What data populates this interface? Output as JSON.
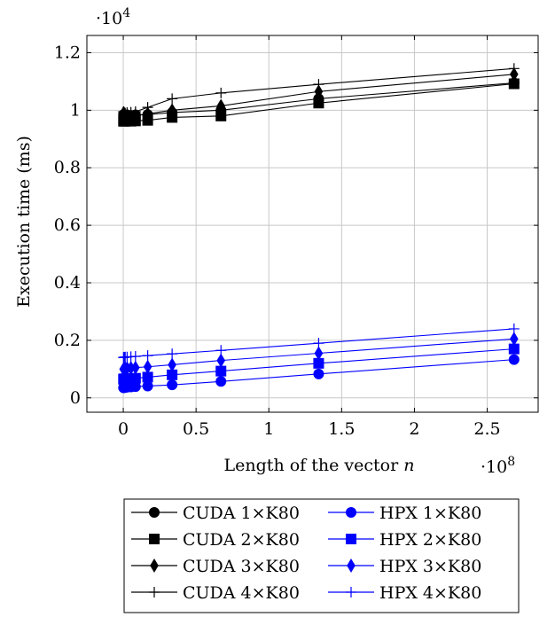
{
  "chart_data": {
    "type": "line",
    "xlabel_text": "Length of the vector ",
    "xlabel_var": "n",
    "ylabel": "Execution time (ms)",
    "y_multiplier": {
      "base": "·10",
      "exp": "4"
    },
    "x_multiplier": {
      "base": "·10",
      "exp": "8"
    },
    "xlim": [
      -0.25,
      2.85
    ],
    "ylim": [
      -0.05,
      1.26
    ],
    "x_ticks": [
      0,
      0.5,
      1,
      1.5,
      2,
      2.5
    ],
    "x_tick_labels": [
      "0",
      "0.5",
      "1",
      "1.5",
      "2",
      "2.5"
    ],
    "y_ticks": [
      0,
      0.2,
      0.4,
      0.6,
      0.8,
      1,
      1.2
    ],
    "y_tick_labels": [
      "0",
      "0.2",
      "0.4",
      "0.6",
      "0.8",
      "1",
      "1.2"
    ],
    "grid": true,
    "legend_position": "bottom",
    "x": [
      0.0016,
      0.0033,
      0.0066,
      0.0131,
      0.0262,
      0.0524,
      0.0839,
      0.1678,
      0.3355,
      0.6711,
      1.3422,
      2.6844
    ],
    "series": [
      {
        "name": "CUDA 1×K80",
        "color": "#000000",
        "marker": "circle",
        "values": [
          0.985,
          0.982,
          0.985,
          0.983,
          0.984,
          0.982,
          0.984,
          0.985,
          0.992,
          1.0,
          1.04,
          1.095
        ]
      },
      {
        "name": "HPX 1×K80",
        "color": "#0000ff",
        "marker": "circle",
        "values": [
          0.035,
          0.035,
          0.036,
          0.036,
          0.037,
          0.038,
          0.039,
          0.041,
          0.045,
          0.057,
          0.083,
          0.133
        ]
      },
      {
        "name": "CUDA 2×K80",
        "color": "#000000",
        "marker": "square",
        "values": [
          0.962,
          0.962,
          0.963,
          0.962,
          0.963,
          0.962,
          0.963,
          0.965,
          0.975,
          0.98,
          1.025,
          1.092
        ]
      },
      {
        "name": "HPX 2×K80",
        "color": "#0000ff",
        "marker": "square",
        "values": [
          0.065,
          0.065,
          0.066,
          0.066,
          0.066,
          0.067,
          0.068,
          0.072,
          0.08,
          0.093,
          0.12,
          0.17
        ]
      },
      {
        "name": "CUDA 3×K80",
        "color": "#000000",
        "marker": "diamond",
        "values": [
          0.99,
          0.98,
          0.975,
          0.972,
          0.975,
          0.978,
          0.98,
          0.988,
          1.0,
          1.015,
          1.065,
          1.125
        ]
      },
      {
        "name": "HPX 3×K80",
        "color": "#0000ff",
        "marker": "diamond",
        "values": [
          0.1,
          0.1,
          0.101,
          0.102,
          0.103,
          0.104,
          0.105,
          0.108,
          0.115,
          0.13,
          0.155,
          0.205
        ]
      },
      {
        "name": "CUDA 4×K80",
        "color": "#000000",
        "marker": "plus",
        "values": [
          0.995,
          0.99,
          0.993,
          0.99,
          0.992,
          0.993,
          0.995,
          1.01,
          1.04,
          1.06,
          1.09,
          1.145
        ]
      },
      {
        "name": "HPX 4×K80",
        "color": "#0000ff",
        "marker": "plus",
        "values": [
          0.14,
          0.14,
          0.141,
          0.142,
          0.142,
          0.143,
          0.144,
          0.147,
          0.153,
          0.165,
          0.19,
          0.24
        ]
      }
    ]
  }
}
